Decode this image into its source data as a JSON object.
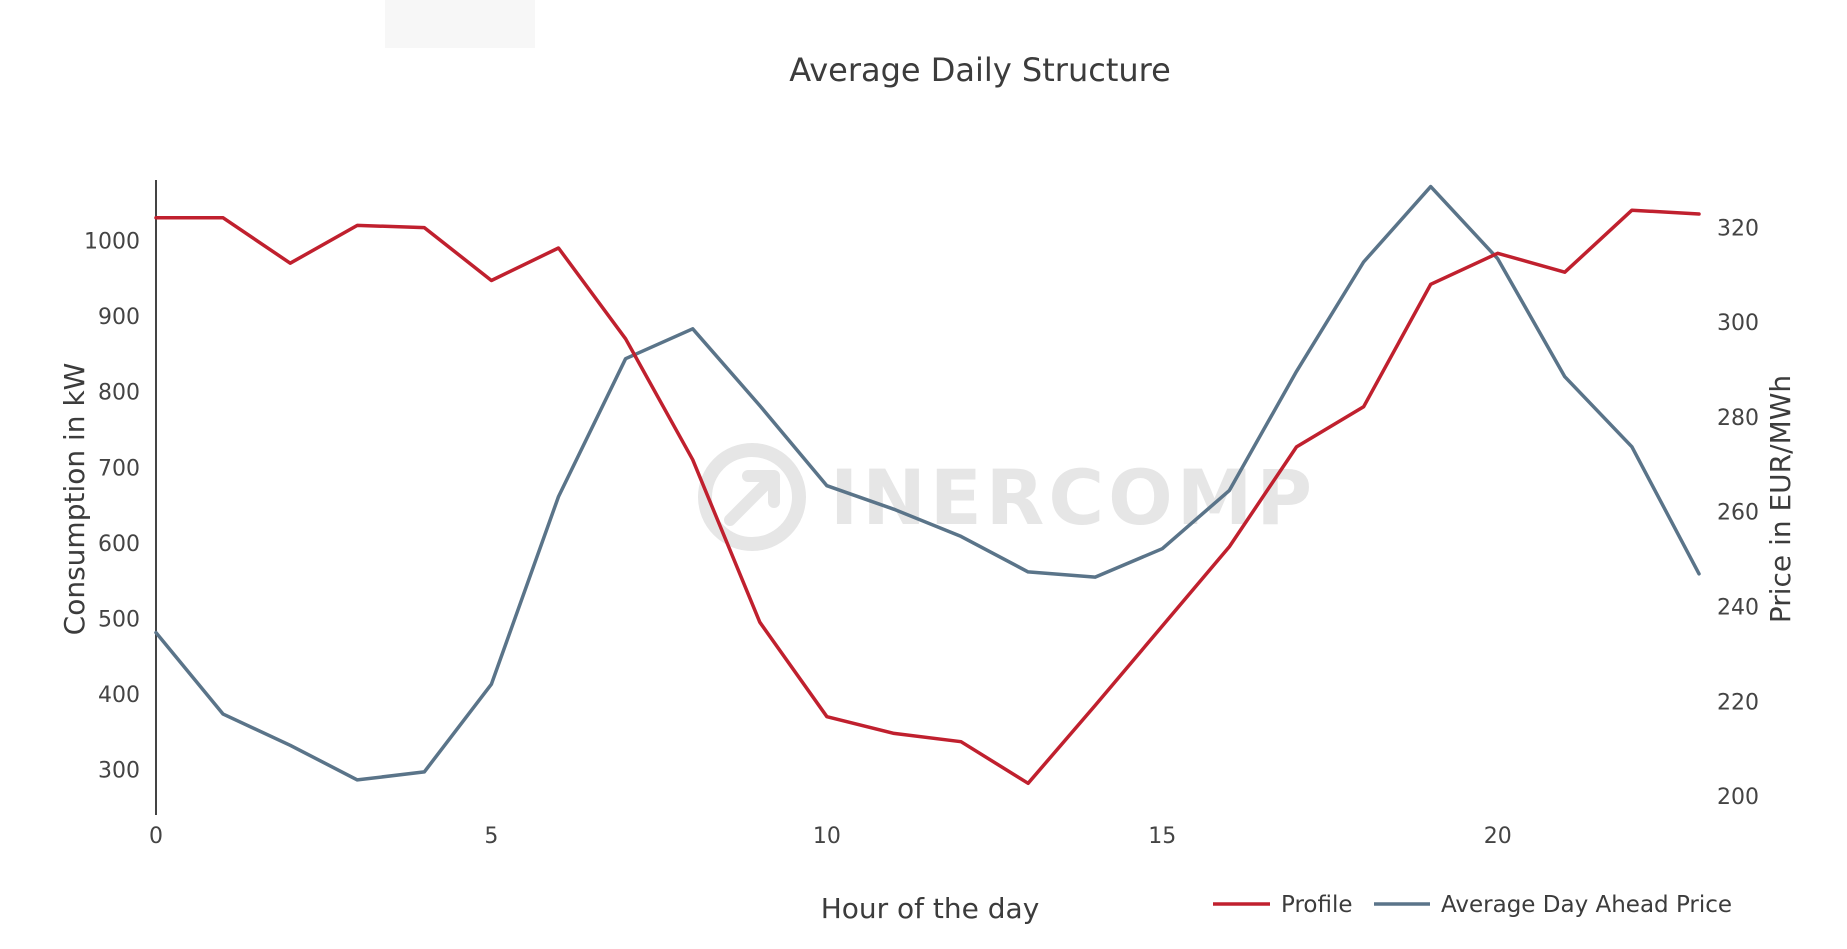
{
  "chart_data": {
    "type": "line",
    "title": "Average Daily Structure",
    "xlabel": "Hour of the day",
    "ylabel_left": "Consumption in kW",
    "ylabel_right": "Price in EUR/MWh",
    "x": [
      0,
      1,
      2,
      3,
      4,
      5,
      6,
      7,
      8,
      9,
      10,
      11,
      12,
      13,
      14,
      15,
      16,
      17,
      18,
      19,
      20,
      21,
      22,
      23
    ],
    "x_ticks": [
      0,
      5,
      10,
      15,
      20
    ],
    "xlim": [
      0,
      23
    ],
    "y_left_ticks": [
      300,
      400,
      500,
      600,
      700,
      800,
      900,
      1000
    ],
    "y_left_range": [
      240,
      1080
    ],
    "y_right_ticks": [
      200,
      220,
      240,
      260,
      280,
      300,
      320
    ],
    "y_right_range": [
      196,
      330
    ],
    "series": [
      {
        "name": "Profile",
        "axis": "left",
        "color": "#c0202e",
        "values": [
          1030,
          1030,
          970,
          1020,
          1017,
          947,
          990,
          870,
          710,
          495,
          370,
          348,
          337,
          282,
          385,
          490,
          595,
          727,
          780,
          942,
          983,
          958,
          1040,
          1035
        ]
      },
      {
        "name": "Average Day Ahead Price",
        "axis": "right",
        "color": "#5a7489",
        "values": [
          234.5,
          217.3,
          210.7,
          203.4,
          205.1,
          223.6,
          263.2,
          292.3,
          298.6,
          282.4,
          265.5,
          260.5,
          254.8,
          247.3,
          246.2,
          252.2,
          264.5,
          289.6,
          312.7,
          328.6,
          313.4,
          288.5,
          273.7,
          246.9
        ]
      }
    ],
    "legend_position": "bottom-right",
    "grid": false,
    "watermark": "INERCOMP"
  }
}
